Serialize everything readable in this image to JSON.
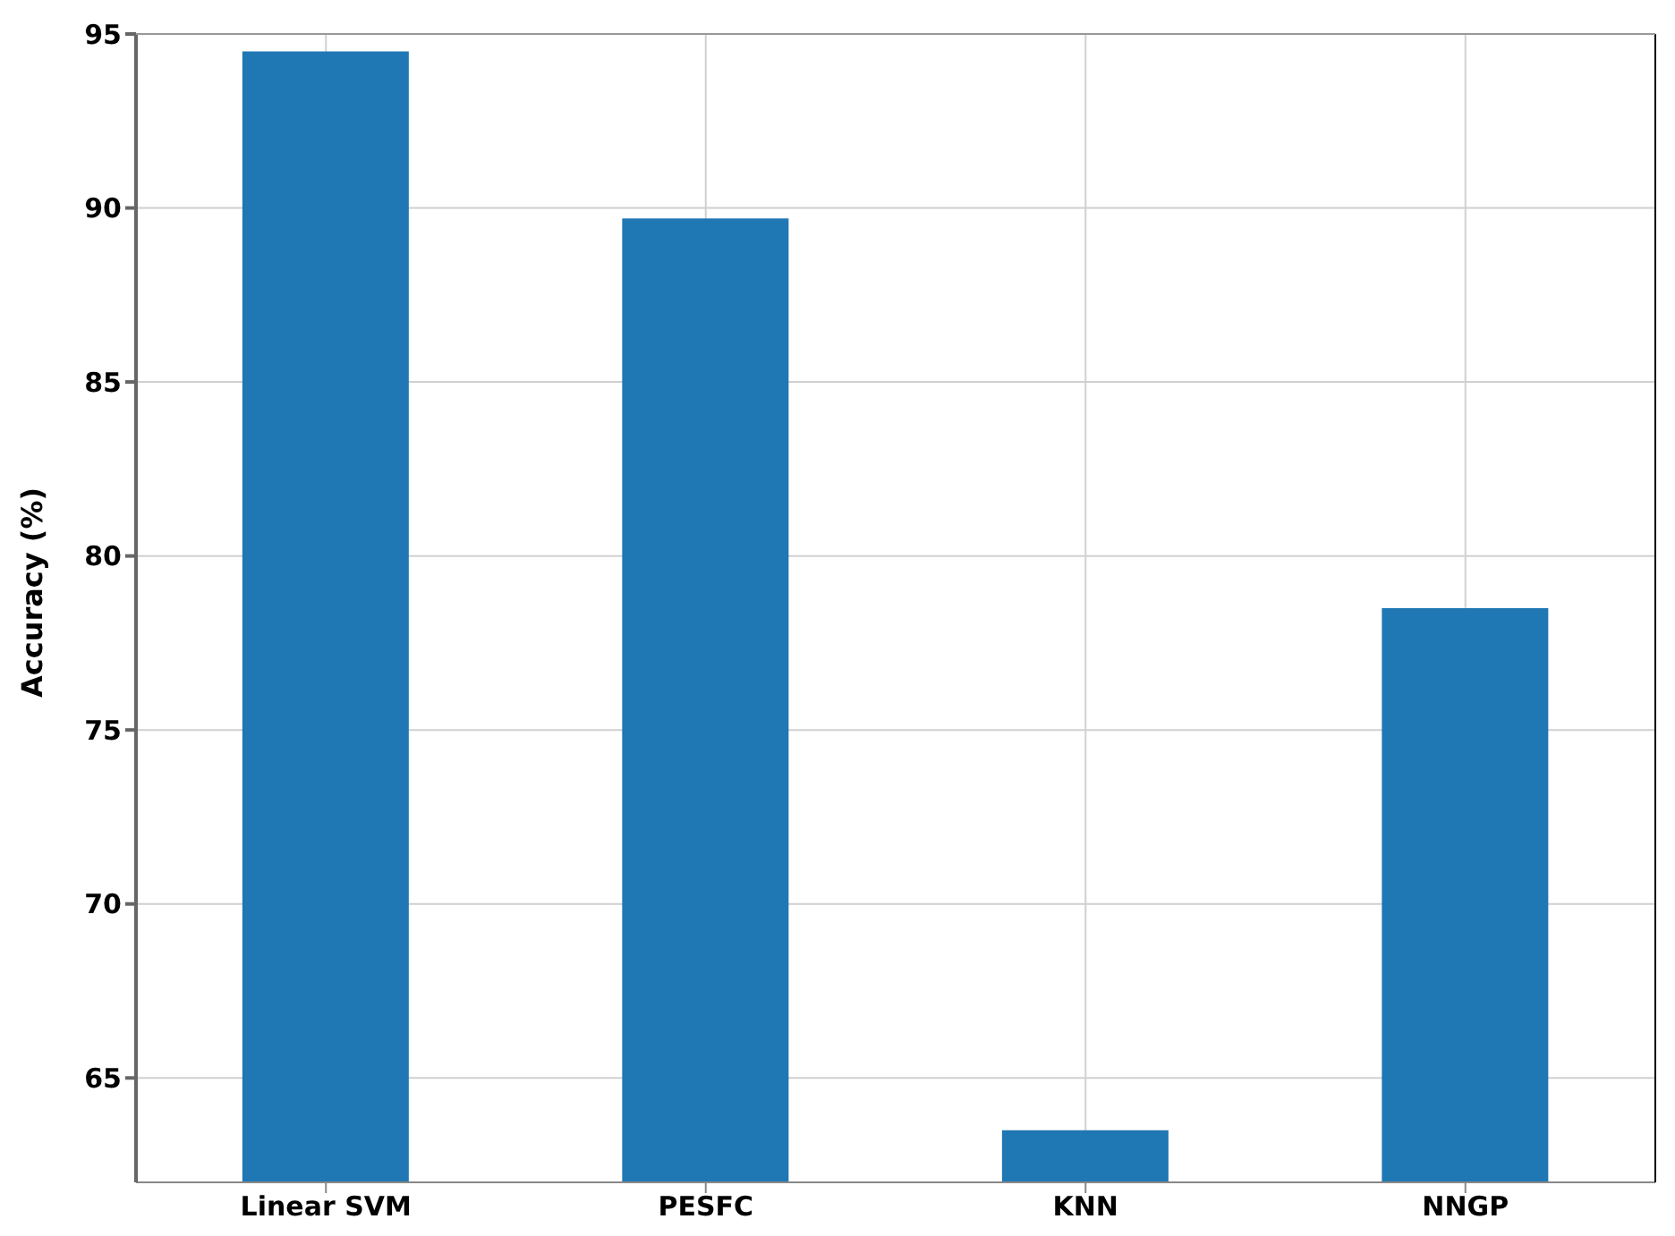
{
  "chart_data": {
    "type": "bar",
    "ylabel": "Accuracy (%)",
    "categories": [
      "Linear SVM",
      "PESFC",
      "KNN",
      "NNGP"
    ],
    "values": [
      94.5,
      89.7,
      63.5,
      78.5
    ],
    "color": "#1f77b4",
    "ylim": [
      62,
      95
    ],
    "yticks": [
      65,
      70,
      75,
      80,
      85,
      90,
      95
    ],
    "grid": true
  }
}
